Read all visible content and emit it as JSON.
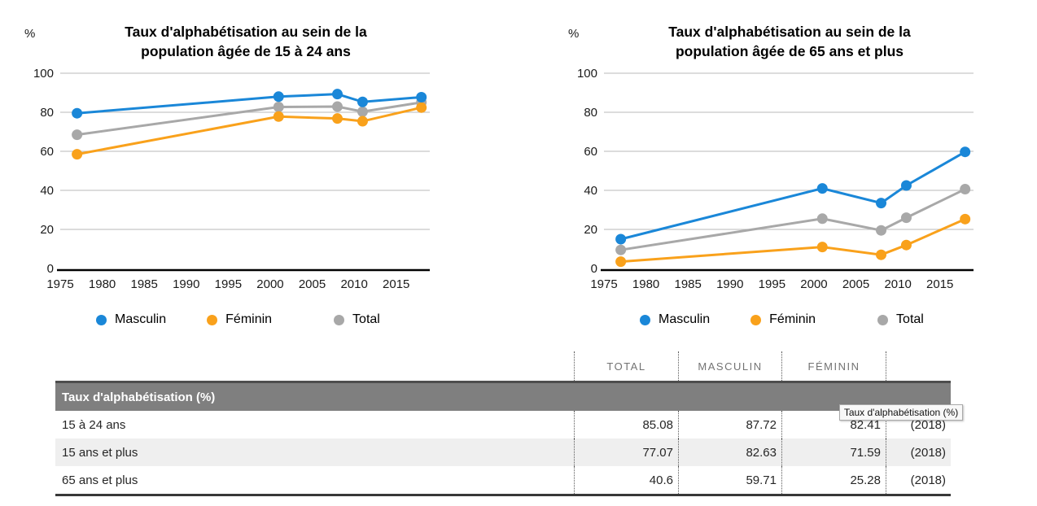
{
  "colors": {
    "masculin": "#1a87d8",
    "feminin": "#f9a11b",
    "total": "#a8a8a8",
    "gridline": "#c6c6c6",
    "axis": "#000000",
    "table_header_bg": "#7f7f7f",
    "table_stripe_bg": "#efefef"
  },
  "tooltip": {
    "text": "Taux d'alphabétisation (%)"
  },
  "chart_data": [
    {
      "type": "line",
      "title_line1": "Taux d'alphabétisation au sein de la",
      "title_line2": "population âgée de 15 à 24 ans",
      "unit_label": "%",
      "x": [
        1977,
        2001,
        2008,
        2011,
        2018
      ],
      "x_tick_labels": [
        "1975",
        "1980",
        "1985",
        "1990",
        "1995",
        "2000",
        "2005",
        "2010",
        "2015"
      ],
      "x_range": [
        1975,
        2019
      ],
      "y_ticks": [
        0,
        20,
        40,
        60,
        80,
        100
      ],
      "ylim": [
        0,
        100
      ],
      "grid": "horizontal",
      "legend_position": "bottom",
      "series": [
        {
          "name": "Masculin",
          "color": "#1a87d8",
          "values": [
            79.5,
            88,
            89.3,
            85.3,
            87.72
          ]
        },
        {
          "name": "Féminin",
          "color": "#f9a11b",
          "values": [
            58.5,
            77.8,
            76.8,
            75.4,
            82.41
          ]
        },
        {
          "name": "Total",
          "color": "#a8a8a8",
          "values": [
            68.5,
            82.7,
            82.9,
            80.3,
            85.08
          ]
        }
      ]
    },
    {
      "type": "line",
      "title_line1": "Taux d'alphabétisation au sein de la",
      "title_line2": "population âgée de 65 ans et plus",
      "unit_label": "%",
      "x": [
        1977,
        2001,
        2008,
        2011,
        2018
      ],
      "x_tick_labels": [
        "1975",
        "1980",
        "1985",
        "1990",
        "1995",
        "2000",
        "2005",
        "2010",
        "2015"
      ],
      "x_range": [
        1975,
        2019
      ],
      "y_ticks": [
        0,
        20,
        40,
        60,
        80,
        100
      ],
      "ylim": [
        0,
        100
      ],
      "grid": "horizontal",
      "legend_position": "bottom",
      "series": [
        {
          "name": "Masculin",
          "color": "#1a87d8",
          "values": [
            15,
            41,
            33.5,
            42.5,
            59.71
          ]
        },
        {
          "name": "Féminin",
          "color": "#f9a11b",
          "values": [
            3.5,
            11,
            7,
            12,
            25.28
          ]
        },
        {
          "name": "Total",
          "color": "#a8a8a8",
          "values": [
            9.5,
            25.5,
            19.5,
            26,
            40.6
          ]
        }
      ]
    },
    {
      "type": "table",
      "header": "Taux d'alphabétisation (%)",
      "columns": [
        "TOTAL",
        "MASCULIN",
        "FÉMININ"
      ],
      "rows": [
        {
          "label": "15 à 24 ans",
          "total": "85.08",
          "masculin": "87.72",
          "feminin": "82.41",
          "year": "(2018)"
        },
        {
          "label": "15 ans et plus",
          "total": "77.07",
          "masculin": "82.63",
          "feminin": "71.59",
          "year": "(2018)"
        },
        {
          "label": "65 ans et plus",
          "total": "40.6",
          "masculin": "59.71",
          "feminin": "25.28",
          "year": "(2018)"
        }
      ]
    }
  ]
}
